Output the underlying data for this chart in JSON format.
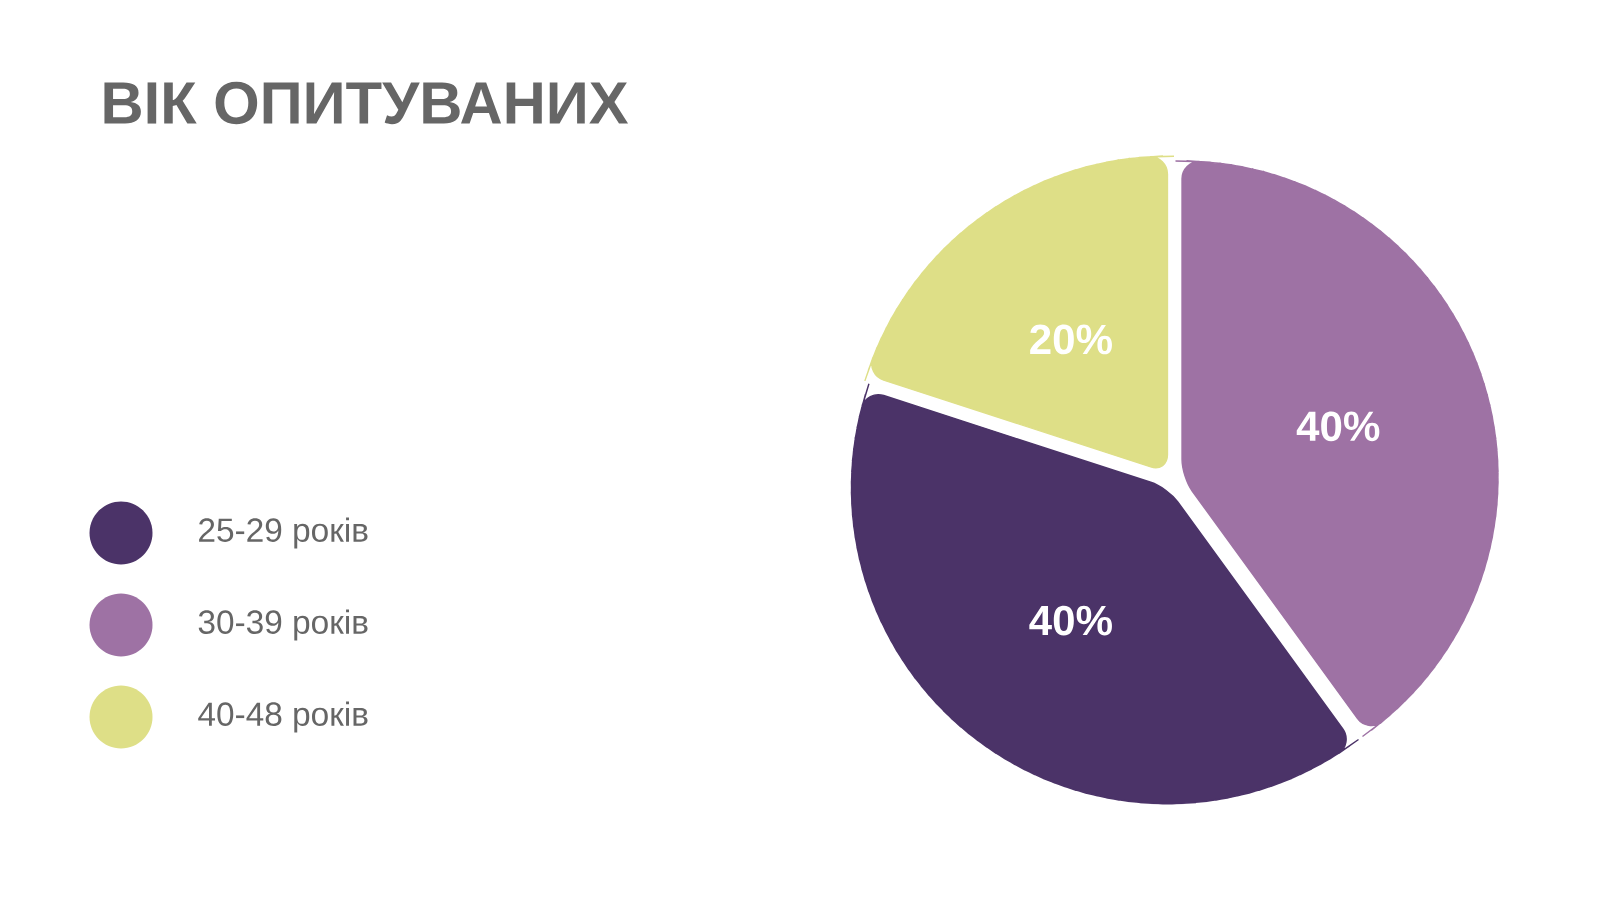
{
  "chart_data": {
    "type": "pie",
    "title": "ВІК ОПИТУВАНИХ",
    "categories": [
      "25-29 років",
      "30-39 років",
      "40-48 років"
    ],
    "values": [
      40,
      40,
      20
    ],
    "value_labels": [
      "40%",
      "40%",
      "20%"
    ],
    "colors": [
      "#4b3368",
      "#9e72a4",
      "#dedf87"
    ],
    "legend": "left"
  }
}
